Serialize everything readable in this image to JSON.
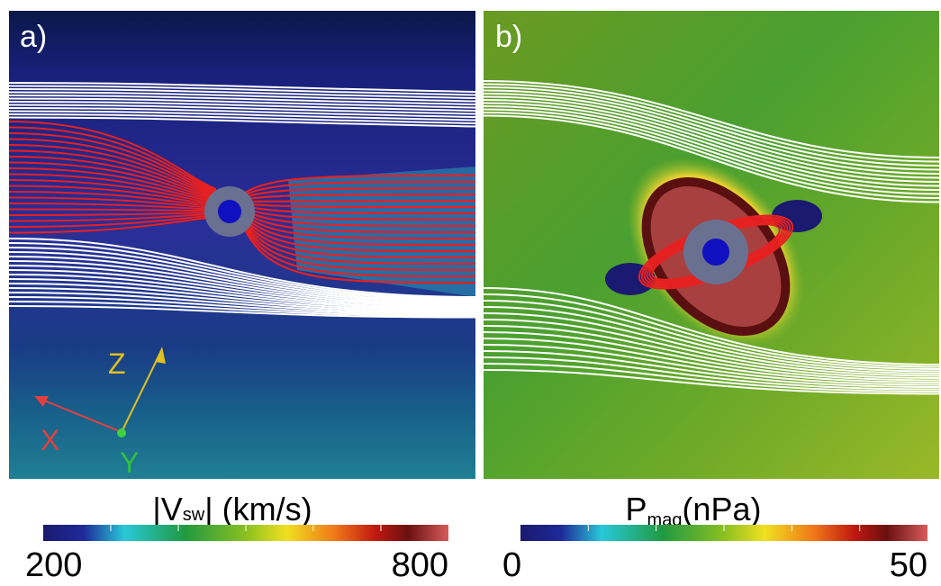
{
  "panels": [
    {
      "label": "a)",
      "axes": {
        "x": "X",
        "y": "Y",
        "z": "Z"
      }
    },
    {
      "label": "b)"
    }
  ],
  "colorbars": [
    {
      "title": "|V",
      "subscript": "sw",
      "unit": "| (km/s)",
      "ticks": [
        200,
        800
      ]
    },
    {
      "title": "P",
      "subscript": "mag",
      "unit": "(nPa)",
      "ticks": [
        0,
        50
      ]
    }
  ]
}
